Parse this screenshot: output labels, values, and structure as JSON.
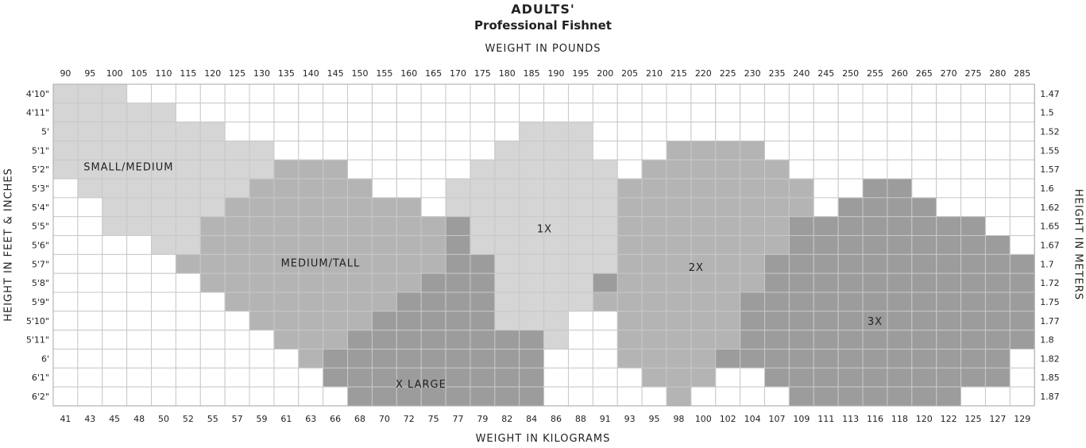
{
  "title": "ADULTS'",
  "subtitle": "Professional Fishnet",
  "chart_data": {
    "type": "heatmap",
    "x_top_label": "WEIGHT IN POUNDS",
    "x_bottom_label": "WEIGHT IN KILOGRAMS",
    "y_left_label": "HEIGHT IN FEET & INCHES",
    "y_right_label": "HEIGHT IN METERS",
    "x_pounds": [
      90,
      95,
      100,
      105,
      110,
      115,
      120,
      125,
      130,
      135,
      140,
      145,
      150,
      155,
      160,
      165,
      170,
      175,
      180,
      185,
      190,
      195,
      200,
      205,
      210,
      215,
      220,
      225,
      230,
      235,
      240,
      245,
      250,
      255,
      260,
      265,
      270,
      275,
      280,
      285
    ],
    "x_kilograms": [
      41,
      43,
      45,
      48,
      50,
      52,
      55,
      57,
      59,
      61,
      63,
      66,
      68,
      70,
      72,
      75,
      77,
      79,
      82,
      84,
      86,
      88,
      91,
      93,
      95,
      98,
      100,
      102,
      104,
      107,
      109,
      111,
      113,
      116,
      118,
      120,
      122,
      125,
      127,
      129
    ],
    "y_feet_inches": [
      "4'10\"",
      "4'11\"",
      "5'",
      "5'1\"",
      "5'2\"",
      "5'3\"",
      "5'4\"",
      "5'5\"",
      "5'6\"",
      "5'7\"",
      "5'8\"",
      "5'9\"",
      "5'10\"",
      "5'11\"",
      "6'",
      "6'1\"",
      "6'2\""
    ],
    "y_meters": [
      "1.47",
      "1.5",
      "1.52",
      "1.55",
      "1.57",
      "1.6",
      "1.62",
      "1.65",
      "1.67",
      "1.7",
      "1.72",
      "1.75",
      "1.77",
      "1.8",
      "1.82",
      "1.85",
      "1.87"
    ],
    "sizes": [
      {
        "name": "SMALL/MEDIUM",
        "color": "#d5d5d5"
      },
      {
        "name": "MEDIUM/TALL",
        "color": "#b4b4b4"
      },
      {
        "name": "X LARGE",
        "color": "#9c9c9c"
      },
      {
        "name": "1X",
        "color": "#d5d5d5"
      },
      {
        "name": "2X",
        "color": "#b4b4b4"
      },
      {
        "name": "3X",
        "color": "#9c9c9c"
      }
    ],
    "size_grid": [
      "0000............................................................................",
      "000000..................................................................................",
      "00000000.........................................................................",
      "0000000000...................................................................",
      "00000000001111....................................................................",
      "..000000001111111.................................................................",
      "....00000011111111111............................................................",
      "......0000111111111112..........................................................",
      "........001111111111112.........................................................",
      "..........11111111111122.........................................................",
      "...........111111111222.........................................................",
      ".............1111111222.........................................................",
      "...............111112222........................................................",
      ".................11122222........................................................",
      "...................22222222......................................................",
      "....................22222222.....................................................",
      ".....................2222222....................................................."
    ],
    "cells": [
      [
        0,
        0,
        0,
        -1,
        -1,
        -1,
        -1,
        -1,
        -1,
        -1,
        -1,
        -1,
        -1,
        -1,
        -1,
        -1,
        -1,
        -1,
        -1,
        -1,
        -1,
        -1,
        -1,
        -1,
        -1,
        -1,
        -1,
        -1,
        -1,
        -1,
        -1,
        -1,
        -1,
        -1,
        -1,
        -1,
        -1,
        -1,
        -1,
        -1
      ],
      [
        0,
        0,
        0,
        0,
        0,
        -1,
        -1,
        -1,
        -1,
        -1,
        -1,
        -1,
        -1,
        -1,
        -1,
        -1,
        -1,
        -1,
        -1,
        -1,
        -1,
        -1,
        -1,
        -1,
        -1,
        -1,
        -1,
        -1,
        -1,
        -1,
        -1,
        -1,
        -1,
        -1,
        -1,
        -1,
        -1,
        -1,
        -1,
        -1
      ],
      [
        0,
        0,
        0,
        0,
        0,
        0,
        0,
        -1,
        -1,
        -1,
        -1,
        -1,
        -1,
        -1,
        -1,
        -1,
        -1,
        -1,
        -1,
        3,
        3,
        3,
        -1,
        -1,
        -1,
        -1,
        -1,
        -1,
        -1,
        -1,
        -1,
        -1,
        -1,
        -1,
        -1,
        -1,
        -1,
        -1,
        -1,
        -1
      ],
      [
        0,
        0,
        0,
        0,
        0,
        0,
        0,
        0,
        0,
        -1,
        -1,
        -1,
        -1,
        -1,
        -1,
        -1,
        -1,
        -1,
        3,
        3,
        3,
        3,
        -1,
        -1,
        -1,
        4,
        4,
        4,
        4,
        -1,
        -1,
        -1,
        -1,
        -1,
        -1,
        -1,
        -1,
        -1,
        -1,
        -1
      ],
      [
        0,
        0,
        0,
        0,
        0,
        0,
        0,
        0,
        0,
        1,
        1,
        1,
        -1,
        -1,
        -1,
        -1,
        -1,
        3,
        3,
        3,
        3,
        3,
        3,
        -1,
        4,
        4,
        4,
        4,
        4,
        4,
        -1,
        -1,
        -1,
        -1,
        -1,
        -1,
        -1,
        -1,
        -1,
        -1
      ],
      [
        -1,
        0,
        0,
        0,
        0,
        0,
        0,
        0,
        1,
        1,
        1,
        1,
        1,
        -1,
        -1,
        -1,
        3,
        3,
        3,
        3,
        3,
        3,
        3,
        4,
        4,
        4,
        4,
        4,
        4,
        4,
        4,
        -1,
        -1,
        5,
        5,
        -1,
        -1,
        -1,
        -1,
        -1
      ],
      [
        -1,
        -1,
        0,
        0,
        0,
        0,
        0,
        1,
        1,
        1,
        1,
        1,
        1,
        1,
        1,
        -1,
        3,
        3,
        3,
        3,
        3,
        3,
        3,
        4,
        4,
        4,
        4,
        4,
        4,
        4,
        4,
        -1,
        5,
        5,
        5,
        5,
        -1,
        -1,
        -1,
        -1
      ],
      [
        -1,
        -1,
        0,
        0,
        0,
        0,
        1,
        1,
        1,
        1,
        1,
        1,
        1,
        1,
        1,
        1,
        2,
        3,
        3,
        3,
        3,
        3,
        3,
        4,
        4,
        4,
        4,
        4,
        4,
        4,
        5,
        5,
        5,
        5,
        5,
        5,
        5,
        5,
        -1,
        -1
      ],
      [
        -1,
        -1,
        -1,
        -1,
        0,
        0,
        1,
        1,
        1,
        1,
        1,
        1,
        1,
        1,
        1,
        1,
        2,
        3,
        3,
        3,
        3,
        3,
        3,
        4,
        4,
        4,
        4,
        4,
        4,
        4,
        5,
        5,
        5,
        5,
        5,
        5,
        5,
        5,
        5,
        -1
      ],
      [
        -1,
        -1,
        -1,
        -1,
        -1,
        1,
        1,
        1,
        1,
        1,
        1,
        1,
        1,
        1,
        1,
        1,
        2,
        2,
        3,
        3,
        3,
        3,
        3,
        4,
        4,
        4,
        4,
        4,
        4,
        5,
        5,
        5,
        5,
        5,
        5,
        5,
        5,
        5,
        5,
        5
      ],
      [
        -1,
        -1,
        -1,
        -1,
        -1,
        -1,
        1,
        1,
        1,
        1,
        1,
        1,
        1,
        1,
        1,
        2,
        2,
        2,
        3,
        3,
        3,
        3,
        2,
        4,
        4,
        4,
        4,
        4,
        4,
        5,
        5,
        5,
        5,
        5,
        5,
        5,
        5,
        5,
        5,
        5
      ],
      [
        -1,
        -1,
        -1,
        -1,
        -1,
        -1,
        -1,
        1,
        1,
        1,
        1,
        1,
        1,
        1,
        2,
        2,
        2,
        2,
        3,
        3,
        3,
        3,
        4,
        4,
        4,
        4,
        4,
        4,
        5,
        5,
        5,
        5,
        5,
        5,
        5,
        5,
        5,
        5,
        5,
        5
      ],
      [
        -1,
        -1,
        -1,
        -1,
        -1,
        -1,
        -1,
        -1,
        1,
        1,
        1,
        1,
        1,
        2,
        2,
        2,
        2,
        2,
        3,
        3,
        3,
        -1,
        -1,
        4,
        4,
        4,
        4,
        4,
        5,
        5,
        5,
        5,
        5,
        5,
        5,
        5,
        5,
        5,
        5,
        5
      ],
      [
        -1,
        -1,
        -1,
        -1,
        -1,
        -1,
        -1,
        -1,
        -1,
        1,
        1,
        1,
        2,
        2,
        2,
        2,
        2,
        2,
        2,
        2,
        3,
        -1,
        -1,
        4,
        4,
        4,
        4,
        4,
        5,
        5,
        5,
        5,
        5,
        5,
        5,
        5,
        5,
        5,
        5,
        5
      ],
      [
        -1,
        -1,
        -1,
        -1,
        -1,
        -1,
        -1,
        -1,
        -1,
        -1,
        1,
        2,
        2,
        2,
        2,
        2,
        2,
        2,
        2,
        2,
        -1,
        -1,
        -1,
        4,
        4,
        4,
        4,
        5,
        5,
        5,
        5,
        5,
        5,
        5,
        5,
        5,
        5,
        5,
        5,
        -1
      ],
      [
        -1,
        -1,
        -1,
        -1,
        -1,
        -1,
        -1,
        -1,
        -1,
        -1,
        -1,
        2,
        2,
        2,
        2,
        2,
        2,
        2,
        2,
        2,
        -1,
        -1,
        -1,
        -1,
        4,
        4,
        4,
        -1,
        -1,
        5,
        5,
        5,
        5,
        5,
        5,
        5,
        5,
        5,
        5,
        -1
      ],
      [
        -1,
        -1,
        -1,
        -1,
        -1,
        -1,
        -1,
        -1,
        -1,
        -1,
        -1,
        -1,
        2,
        2,
        2,
        2,
        2,
        2,
        2,
        2,
        -1,
        -1,
        -1,
        -1,
        -1,
        4,
        -1,
        -1,
        -1,
        -1,
        5,
        5,
        5,
        5,
        5,
        5,
        5,
        -1,
        -1,
        -1
      ]
    ]
  }
}
